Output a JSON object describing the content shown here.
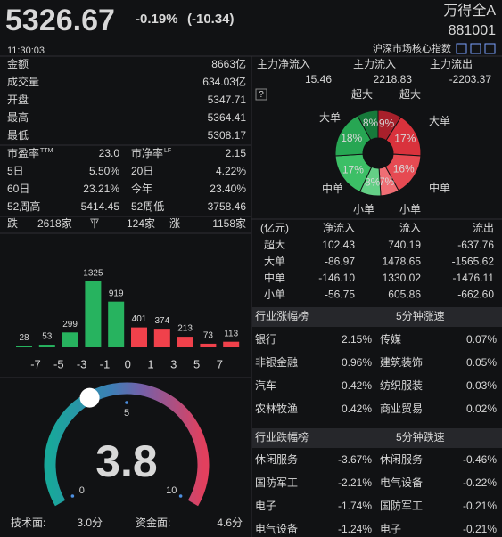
{
  "colors": {
    "up": "#f0414b",
    "down": "#27b35f",
    "neutral": "#d8d8d8"
  },
  "header": {
    "price": "5326.67",
    "change_pct": "-0.19%",
    "change": "(-10.34)",
    "color": "#27b35f",
    "name": "万得全A",
    "code": "881001",
    "time": "11:30:03",
    "index_group": "沪深市场核心指数"
  },
  "stats": [
    {
      "label": "金额",
      "value": "8663亿",
      "color": "#d8d8d8"
    },
    {
      "label": "成交量",
      "value": "634.03亿",
      "color": "#d8d8d8"
    },
    {
      "label": "开盘",
      "value": "5347.71",
      "color": "#f0414b"
    },
    {
      "label": "最高",
      "value": "5364.41",
      "color": "#f0414b"
    },
    {
      "label": "最低",
      "value": "5308.17",
      "color": "#27b35f"
    }
  ],
  "ratios": [
    [
      {
        "label": "市盈率",
        "sup": "TTM",
        "value": "23.0",
        "color": "#d8d8d8"
      },
      {
        "label": "市净率",
        "sup": "LF",
        "value": "2.15",
        "color": "#d8d8d8"
      }
    ],
    [
      {
        "label": "5日",
        "value": "5.50%",
        "color": "#f0414b"
      },
      {
        "label": "20日",
        "value": "4.22%",
        "color": "#f0414b"
      }
    ],
    [
      {
        "label": "60日",
        "value": "23.21%",
        "color": "#f0414b"
      },
      {
        "label": "今年",
        "value": "23.40%",
        "color": "#f0414b"
      }
    ],
    [
      {
        "label": "52周高",
        "value": "5414.45",
        "color": "#d8d8d8"
      },
      {
        "label": "52周低",
        "value": "3758.46",
        "color": "#d8d8d8"
      }
    ]
  ],
  "breadth": {
    "down_label": "跌",
    "down": "2618家",
    "flat_label": "平",
    "flat": "124家",
    "up_label": "涨",
    "up": "1158家"
  },
  "distribution": {
    "values": [
      28,
      53,
      299,
      1325,
      919,
      401,
      374,
      213,
      73,
      113
    ],
    "colors": [
      "#27b35f",
      "#27b35f",
      "#27b35f",
      "#27b35f",
      "#27b35f",
      "#f0414b",
      "#f0414b",
      "#f0414b",
      "#f0414b",
      "#f0414b"
    ],
    "boundaries": [
      -7,
      -5,
      -3,
      -1,
      0,
      1,
      3,
      5,
      7
    ]
  },
  "gauge": {
    "value": 3.8,
    "ticks": [
      0,
      5,
      10
    ],
    "color": "#27b35f",
    "tech_label": "技术面:",
    "tech": "3.0分",
    "fund_label": "资金面:",
    "fund": "4.6分"
  },
  "flow_summary": [
    {
      "label": "主力净流入",
      "value": "15.46",
      "color": "#f0414b"
    },
    {
      "label": "主力流入",
      "value": "2218.83",
      "color": "#f0414b"
    },
    {
      "label": "主力流出",
      "value": "-2203.37",
      "color": "#27b35f"
    }
  ],
  "donut": {
    "segments": [
      {
        "name": "超大",
        "value": 9,
        "label": "9%",
        "color": "#a8202b"
      },
      {
        "name": "大单",
        "value": 17,
        "label": "17%",
        "color": "#d9323c"
      },
      {
        "name": "中单",
        "value": 16,
        "label": "16%",
        "color": "#e64a52"
      },
      {
        "name": "小单",
        "value": 7,
        "label": "7%",
        "color": "#ef6e74"
      },
      {
        "name": "小单",
        "value": 8,
        "label": "8%",
        "color": "#64cf86"
      },
      {
        "name": "中单",
        "value": 17,
        "label": "17%",
        "color": "#3cbf66"
      },
      {
        "name": "大单",
        "value": 18,
        "label": "18%",
        "color": "#27a653"
      },
      {
        "name": "超大",
        "value": 8,
        "label": "8%",
        "color": "#167a3a"
      }
    ]
  },
  "flow_table": {
    "header": [
      "(亿元)",
      "净流入",
      "流入",
      "流出"
    ],
    "rows": [
      [
        "超大",
        "102.43",
        "740.19",
        "-637.76"
      ],
      [
        "大单",
        "-86.97",
        "1478.65",
        "-1565.62"
      ],
      [
        "中单",
        "-146.10",
        "1330.02",
        "-1476.11"
      ],
      [
        "小单",
        "-56.75",
        "605.86",
        "-662.60"
      ]
    ]
  },
  "gainers": {
    "title": "行业涨幅榜",
    "speed_title": "5分钟涨速",
    "rows": [
      [
        "银行",
        "2.15%",
        "传媒",
        "0.07%"
      ],
      [
        "非银金融",
        "0.96%",
        "建筑装饰",
        "0.05%"
      ],
      [
        "汽车",
        "0.42%",
        "纺织服装",
        "0.03%"
      ],
      [
        "农林牧渔",
        "0.42%",
        "商业贸易",
        "0.02%"
      ]
    ]
  },
  "losers": {
    "title": "行业跌幅榜",
    "speed_title": "5分钟跌速",
    "rows": [
      [
        "休闲服务",
        "-3.67%",
        "休闲服务",
        "-0.46%"
      ],
      [
        "国防军工",
        "-2.21%",
        "电气设备",
        "-0.22%"
      ],
      [
        "电子",
        "-1.74%",
        "国防军工",
        "-0.21%"
      ],
      [
        "电气设备",
        "-1.24%",
        "电子",
        "-0.21%"
      ]
    ]
  }
}
